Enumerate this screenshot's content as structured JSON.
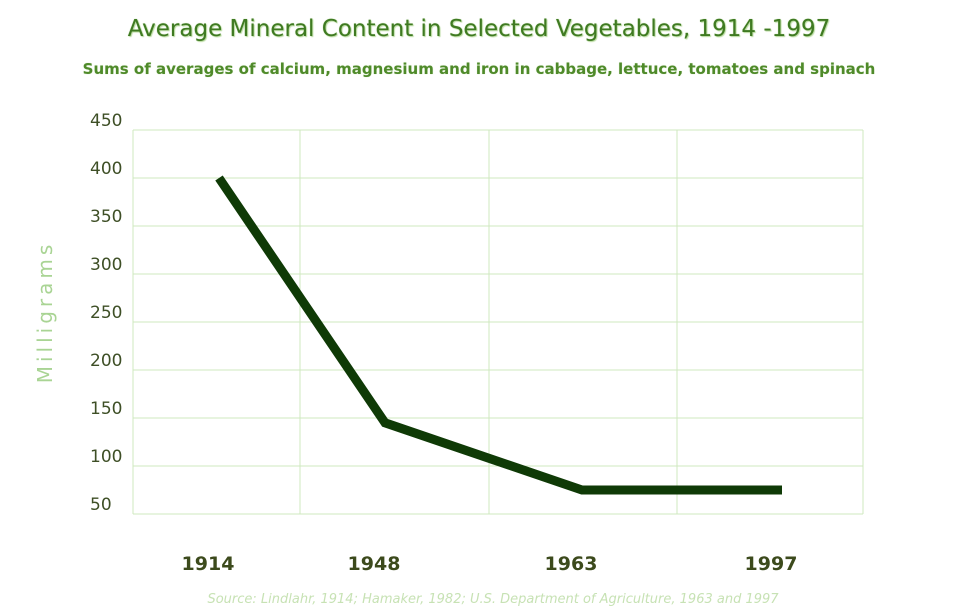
{
  "chart_data": {
    "type": "line",
    "title": "Average Mineral Content in Selected Vegetables, 1914 -1997",
    "subtitle": "Sums of averages of calcium, magnesium and iron in cabbage, lettuce, tomatoes and spinach",
    "xlabel": "",
    "ylabel": "Milligrams",
    "categories": [
      "1914",
      "1948",
      "1963",
      "1997"
    ],
    "series": [
      {
        "values": [
          400,
          145,
          75,
          75
        ]
      }
    ],
    "ylim": [
      50,
      450
    ],
    "yticks": [
      450,
      400,
      350,
      300,
      250,
      200,
      150,
      100,
      50
    ],
    "grid": true,
    "source": "Source: Lindlahr, 1914; Hamaker, 1982; U.S. Department of Agriculture, 1963 and 1997",
    "colors": {
      "line": "#0f3a06",
      "grid": "#cfe8bf",
      "title": "#3f7a22",
      "ylabel": "#a9d494"
    }
  }
}
